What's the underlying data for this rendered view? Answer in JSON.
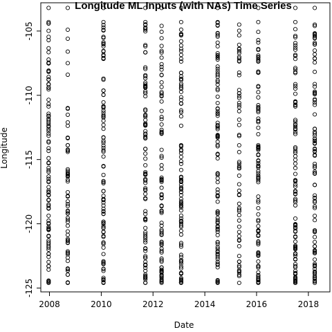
{
  "chart_data": {
    "type": "scatter",
    "title": "Longitude ML Inputs (with NAs) Time Series",
    "xlabel": "Date",
    "ylabel": "Longitude",
    "xlim": [
      "2007-09-01",
      "2018-11-01"
    ],
    "ylim": [
      -125.3,
      -102.8
    ],
    "grid": false,
    "legend": "none",
    "x_ticks": [
      {
        "date": "2008-01-01",
        "label": "2008"
      },
      {
        "date": "2010-01-01",
        "label": "2010"
      },
      {
        "date": "2012-01-01",
        "label": "2012"
      },
      {
        "date": "2014-01-01",
        "label": "2014"
      },
      {
        "date": "2016-01-01",
        "label": "2016"
      },
      {
        "date": "2018-01-01",
        "label": "2018"
      }
    ],
    "y_ticks": [
      -125,
      -120,
      -115,
      -110,
      -105
    ],
    "marker_color": "#000000",
    "series": [
      {
        "date": "2007-12-20",
        "ymin": -124.6,
        "ymax": -104.3,
        "extra": [
          -103.2
        ],
        "count": 95
      },
      {
        "date": "2008-09-15",
        "ymin": -124.6,
        "ymax": -111.0,
        "extra": [
          -103.2,
          -104.9,
          -105.6,
          -106.6,
          -107.5,
          -108.4
        ],
        "count": 60
      },
      {
        "date": "2010-02-01",
        "ymin": -124.6,
        "ymax": -104.3,
        "extra": [
          -103.2
        ],
        "count": 95
      },
      {
        "date": "2011-09-15",
        "ymin": -124.6,
        "ymax": -104.3,
        "extra": [
          -103.2
        ],
        "count": 95
      },
      {
        "date": "2012-05-01",
        "ymin": -124.6,
        "ymax": -104.6,
        "extra": [
          -103.2
        ],
        "count": 80
      },
      {
        "date": "2013-02-01",
        "ymin": -124.6,
        "ymax": -104.3,
        "extra": [
          -103.2
        ],
        "count": 95
      },
      {
        "date": "2014-07-01",
        "ymin": -124.6,
        "ymax": -104.3,
        "extra": [
          -103.2
        ],
        "count": 95
      },
      {
        "date": "2015-05-01",
        "ymin": -124.6,
        "ymax": -104.5,
        "extra": [],
        "count": 60
      },
      {
        "date": "2016-01-25",
        "ymin": -124.6,
        "ymax": -104.3,
        "extra": [
          -103.2
        ],
        "count": 95
      },
      {
        "date": "2017-07-01",
        "ymin": -124.6,
        "ymax": -104.3,
        "extra": [
          -103.2
        ],
        "count": 95
      },
      {
        "date": "2018-04-01",
        "ymin": -124.6,
        "ymax": -104.5,
        "extra": [
          -103.2
        ],
        "count": 90
      }
    ]
  }
}
